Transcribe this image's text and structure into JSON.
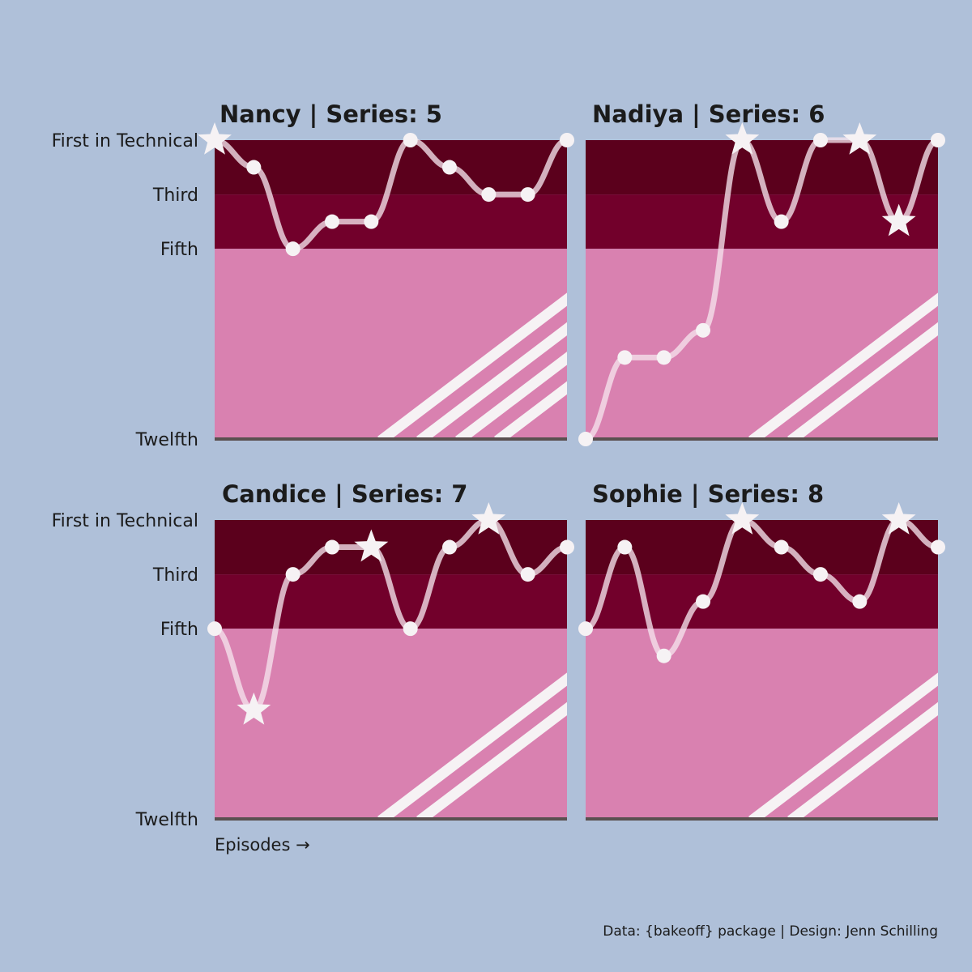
{
  "caption": "Data: {bakeoff} package | Design: Jenn Schilling",
  "x_axis_note": "Episodes →",
  "colors": {
    "background": "#afc0d9",
    "band_top": "#5b001c",
    "band_mid": "#72002b",
    "band_low": "#d981b0",
    "line": "#f5e3ec",
    "marker": "#f6f2f4",
    "stripe": "#f6f2f4",
    "baseline": "#5a5050"
  },
  "chart_data": {
    "type": "line",
    "y_axis": {
      "reversed": true,
      "ylim": [
        1,
        12
      ],
      "ticks": [
        {
          "value": 1,
          "label": "First in Technical"
        },
        {
          "value": 3,
          "label": "Third"
        },
        {
          "value": 5,
          "label": "Fifth"
        },
        {
          "value": 12,
          "label": "Twelfth"
        }
      ],
      "bands": [
        {
          "from": 1,
          "to": 3,
          "color": "#5b001c"
        },
        {
          "from": 3,
          "to": 5,
          "color": "#72002b"
        },
        {
          "from": 5,
          "to": 12,
          "color": "#d981b0"
        }
      ]
    },
    "panels": [
      {
        "title": "Nancy | Series: 5",
        "episodes": [
          1,
          2,
          3,
          4,
          5,
          6,
          7,
          8,
          9,
          10
        ],
        "technical_rank": [
          1,
          2,
          5,
          4,
          4,
          1,
          2,
          3,
          3,
          1
        ],
        "star_baker": [
          1
        ],
        "stripes": 4
      },
      {
        "title": "Nadiya | Series: 6",
        "episodes": [
          1,
          2,
          3,
          4,
          5,
          6,
          7,
          8,
          9,
          10
        ],
        "technical_rank": [
          12,
          9,
          9,
          8,
          1,
          4,
          1,
          1,
          4,
          1
        ],
        "star_baker": [
          5,
          8,
          9
        ],
        "stripes": 2
      },
      {
        "title": "Candice | Series: 7",
        "episodes": [
          1,
          2,
          3,
          4,
          5,
          6,
          7,
          8,
          9,
          10
        ],
        "technical_rank": [
          5,
          8,
          3,
          2,
          2,
          5,
          2,
          1,
          3,
          2
        ],
        "star_baker": [
          2,
          5,
          8
        ],
        "stripes": 2
      },
      {
        "title": "Sophie | Series: 8",
        "episodes": [
          1,
          2,
          3,
          4,
          5,
          6,
          7,
          8,
          9,
          10
        ],
        "technical_rank": [
          5,
          2,
          6,
          4,
          1,
          2,
          3,
          4,
          1,
          2
        ],
        "star_baker": [
          5,
          9
        ],
        "stripes": 2
      }
    ]
  }
}
